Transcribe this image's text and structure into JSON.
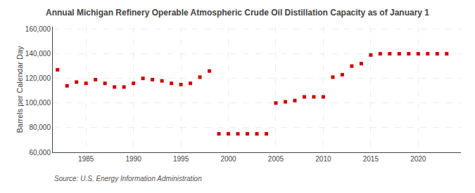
{
  "chart_data": {
    "type": "scatter",
    "title": "Annual Michigan Refinery Operable Atmospheric Crude Oil Distillation Capacity as of January 1",
    "ylabel": "Barrels per Calendar Day",
    "annotations": [
      "Source: U.S. Energy Information Administration"
    ],
    "x": [
      1982,
      1983,
      1984,
      1985,
      1986,
      1987,
      1988,
      1989,
      1990,
      1991,
      1992,
      1993,
      1994,
      1995,
      1996,
      1997,
      1998,
      1999,
      2000,
      2001,
      2002,
      2003,
      2004,
      2005,
      2006,
      2007,
      2008,
      2009,
      2010,
      2011,
      2012,
      2013,
      2014,
      2015,
      2016,
      2017,
      2018,
      2019,
      2020,
      2021,
      2022,
      2023
    ],
    "values": [
      127000,
      114000,
      117000,
      116000,
      119000,
      116000,
      113000,
      113000,
      116000,
      120000,
      119000,
      118000,
      116000,
      115000,
      116000,
      121000,
      126000,
      75000,
      75000,
      75000,
      75000,
      75000,
      75000,
      100000,
      101000,
      102000,
      105000,
      105000,
      105000,
      121000,
      123000,
      130000,
      132000,
      139000,
      140000,
      140000,
      140000,
      140000,
      140000,
      140000,
      140000,
      140000
    ],
    "color": "#cc0000",
    "marker": "square",
    "ylim": [
      60000,
      162000
    ],
    "yticks": [
      {
        "value": 60000,
        "label": "60,000"
      },
      {
        "value": 80000,
        "label": "80,000"
      },
      {
        "value": 100000,
        "label": "100,000"
      },
      {
        "value": 120000,
        "label": "120,000"
      },
      {
        "value": 140000,
        "label": "140,000"
      },
      {
        "value": 160000,
        "label": "160,000"
      }
    ],
    "xlim": [
      1981.5,
      2024.5
    ],
    "xticks": [
      1985,
      1990,
      1995,
      2000,
      2005,
      2010,
      2015,
      2020
    ],
    "grid": true
  }
}
